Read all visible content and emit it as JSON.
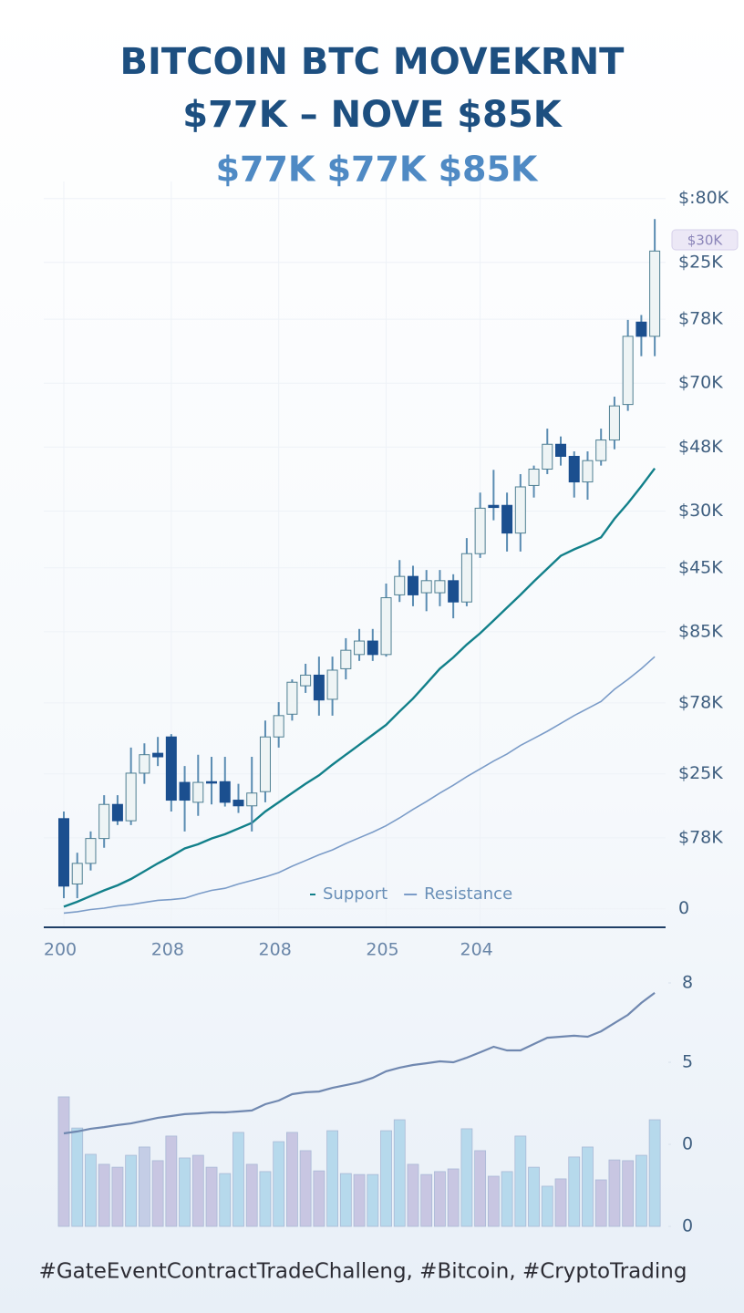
{
  "chart_data": [
    {
      "type": "candlestick",
      "title": "BITCOIN BTC MOVEKRNT",
      "title_line2": "$77K – NOVE $85K",
      "subtitle": "$77K $77K $85K",
      "annotation": "$30K",
      "categories": [
        "200",
        null,
        null,
        null,
        null,
        null,
        null,
        null,
        "208",
        null,
        null,
        null,
        null,
        null,
        null,
        null,
        "208",
        null,
        null,
        null,
        null,
        null,
        null,
        null,
        "205",
        null,
        null,
        null,
        null,
        null,
        null,
        "204",
        null,
        null,
        null,
        null,
        null,
        null,
        null,
        null,
        null,
        null,
        null,
        null,
        null
      ],
      "open": [
        12.7,
        3.5,
        6.4,
        9.9,
        14.7,
        12.4,
        19.1,
        21.9,
        24.2,
        17.8,
        15,
        17.9,
        17.9,
        15.3,
        14.5,
        16.5,
        24.2,
        27.4,
        31.4,
        32.9,
        29.5,
        33.8,
        35.8,
        37.7,
        35.8,
        44.2,
        46.8,
        44.5,
        44.5,
        46.2,
        43.2,
        50,
        56.8,
        56.8,
        52.9,
        59.6,
        61.9,
        65.4,
        63.7,
        60.1,
        63.1,
        66,
        71,
        82.6,
        80.6
      ],
      "high": [
        13.7,
        7.9,
        10.9,
        16,
        16,
        22.7,
        23.3,
        24.2,
        24.6,
        20.1,
        21.7,
        21.4,
        21.4,
        17.6,
        21.4,
        26.5,
        29.1,
        32.3,
        34.5,
        35.5,
        35.5,
        38.1,
        39.4,
        39.4,
        45.8,
        49.1,
        48.3,
        47.7,
        47.7,
        47.1,
        52.2,
        58.6,
        61.8,
        58.6,
        61.2,
        62.4,
        67.6,
        66.5,
        64.4,
        64.4,
        67.6,
        72.1,
        82.9,
        83.6,
        97.1
      ],
      "low": [
        1.5,
        1.5,
        5.4,
        8.6,
        11.8,
        11.8,
        17.6,
        20.1,
        13.7,
        10.9,
        13.1,
        14.7,
        14.4,
        13.5,
        10.9,
        15,
        22.7,
        26.5,
        30.4,
        27.2,
        27.2,
        32.3,
        34.9,
        34.9,
        35.5,
        43.2,
        42.6,
        41.9,
        42.6,
        40.9,
        42.6,
        49.4,
        54.7,
        50.3,
        50.3,
        57.9,
        61.2,
        62.4,
        57.9,
        57.6,
        62.4,
        64.7,
        70.1,
        77.8,
        77.8
      ],
      "close": [
        3.2,
        6.4,
        9.9,
        14.7,
        12.4,
        19.1,
        21.7,
        21.4,
        15.3,
        15.3,
        17.8,
        17.7,
        15,
        14.5,
        16.3,
        24.2,
        27.2,
        31.9,
        32.9,
        29.4,
        33.6,
        36.4,
        37.7,
        35.8,
        43.8,
        46.8,
        44.2,
        46.2,
        46.2,
        43.2,
        50,
        56.4,
        56.5,
        52.9,
        59.4,
        61.9,
        65.4,
        63.7,
        60.1,
        63.1,
        66,
        70.8,
        80.6,
        80.6,
        92.6
      ],
      "up_color": "#eef4f5",
      "down_color": "#1b4f8f",
      "series": [
        {
          "name": "Support",
          "color": "#12808a",
          "values": [
            0.3,
            1,
            1.8,
            2.6,
            3.3,
            4.2,
            5.3,
            6.4,
            7.4,
            8.5,
            9.1,
            9.9,
            10.5,
            11.3,
            12.1,
            13.7,
            15,
            16.3,
            17.6,
            18.8,
            20.3,
            21.7,
            23.1,
            24.5,
            25.9,
            27.8,
            29.6,
            31.7,
            33.8,
            35.4,
            37.2,
            38.8,
            40.6,
            42.4,
            44.2,
            46.1,
            47.9,
            49.7,
            50.6,
            51.4,
            52.3,
            54.9,
            57.1,
            59.5,
            62
          ]
        },
        {
          "name": "Resistance",
          "color": "#7b9cc8",
          "values": [
            -0.6,
            -0.4,
            -0.1,
            0.1,
            0.4,
            0.6,
            0.9,
            1.2,
            1.3,
            1.5,
            2.1,
            2.6,
            2.9,
            3.5,
            4,
            4.5,
            5.1,
            6,
            6.8,
            7.6,
            8.3,
            9.2,
            10,
            10.8,
            11.7,
            12.8,
            14,
            15.1,
            16.3,
            17.4,
            18.6,
            19.7,
            20.8,
            21.8,
            23,
            24,
            25,
            26.1,
            27.2,
            28.2,
            29.2,
            30.9,
            32.3,
            33.8,
            35.5
          ]
        }
      ],
      "ylim": [
        -2.6,
        102.4
      ],
      "yticks": [
        0,
        {
          "value": 10,
          "label": "$78K"
        },
        {
          "value": 19,
          "label": "$25K"
        },
        {
          "value": 29,
          "label": "$78K"
        },
        {
          "value": 39,
          "label": "$85K"
        },
        {
          "value": 48,
          "label": "$45K"
        },
        {
          "value": 56,
          "label": "$30K"
        },
        {
          "value": 65,
          "label": "$48K"
        },
        {
          "value": 74,
          "label": "$70K"
        },
        {
          "value": 83,
          "label": "$78K"
        },
        {
          "value": 91,
          "label": "$25K"
        },
        {
          "value": 100,
          "label": "$:80K"
        }
      ],
      "grid": true,
      "legend": "bottom"
    },
    {
      "type": "bar",
      "values": [
        53.2,
        40.4,
        29.6,
        25.5,
        24.3,
        29.2,
        32.6,
        27,
        37.1,
        28.1,
        29.2,
        24.3,
        21.7,
        38.6,
        25.5,
        22.5,
        34.8,
        38.6,
        31.1,
        22.8,
        39.3,
        21.7,
        21.3,
        21.3,
        39.3,
        43.8,
        25.5,
        21.3,
        22.5,
        23.6,
        40.1,
        31.1,
        20.6,
        22.5,
        37.1,
        24.3,
        16.5,
        19.5,
        28.5,
        32.6,
        19.1,
        27.3,
        27,
        29.2,
        43.8
      ],
      "colors": [
        "#c8c6e2",
        "#b6d9ec",
        "#b6d9ec",
        "#c8c6e2",
        "#c8c6e2",
        "#b6d9ec",
        "#c4cde6",
        "#c8c6e2",
        "#c8c6e2",
        "#b6d9ec",
        "#c8c6e2",
        "#c8c6e2",
        "#b6d9ec",
        "#b6d9ec",
        "#c8c6e2",
        "#b6d9ec",
        "#b6d9ec",
        "#c8c6e2",
        "#c8c6e2",
        "#c8c6e2",
        "#b6d9ec",
        "#b6d9ec",
        "#c8c6e2",
        "#b6d9ec",
        "#b6d9ec",
        "#b6d9ec",
        "#c8c6e2",
        "#c8c6e2",
        "#c8c6e2",
        "#c8c6e2",
        "#b6d9ec",
        "#c8c6e2",
        "#c8c6e2",
        "#b6d9ec",
        "#b6d9ec",
        "#b6d9ec",
        "#b6d9ec",
        "#c8c6e2",
        "#b6d9ec",
        "#b6d9ec",
        "#c8c6e2",
        "#c8c6e2",
        "#c8c6e2",
        "#b6d9ec",
        "#b6d9ec"
      ],
      "line_color": "#7088b0",
      "line_values": [
        38.2,
        39,
        40.1,
        40.8,
        41.6,
        42.3,
        43.4,
        44.6,
        45.3,
        46.1,
        46.4,
        46.8,
        46.8,
        47.2,
        47.6,
        50.2,
        51.7,
        54.3,
        55.1,
        55.4,
        56.9,
        58,
        59.2,
        61,
        63.7,
        65.2,
        66.3,
        67,
        67.8,
        67.4,
        69.3,
        71.5,
        73.8,
        72.3,
        72.3,
        74.9,
        77.5,
        77.9,
        78.3,
        77.9,
        80.1,
        83.5,
        86.9,
        91.8,
        95.9
      ],
      "ylim": [
        0,
        100
      ],
      "yticks": [
        0,
        {
          "value": 33.7,
          "label": "0"
        },
        {
          "value": 67.4,
          "label": "5"
        },
        {
          "value": 100,
          "label": "8"
        }
      ],
      "footer": "#GateEventContractTradeChalleng, #Bitcoin, #CryptoTrading"
    }
  ]
}
